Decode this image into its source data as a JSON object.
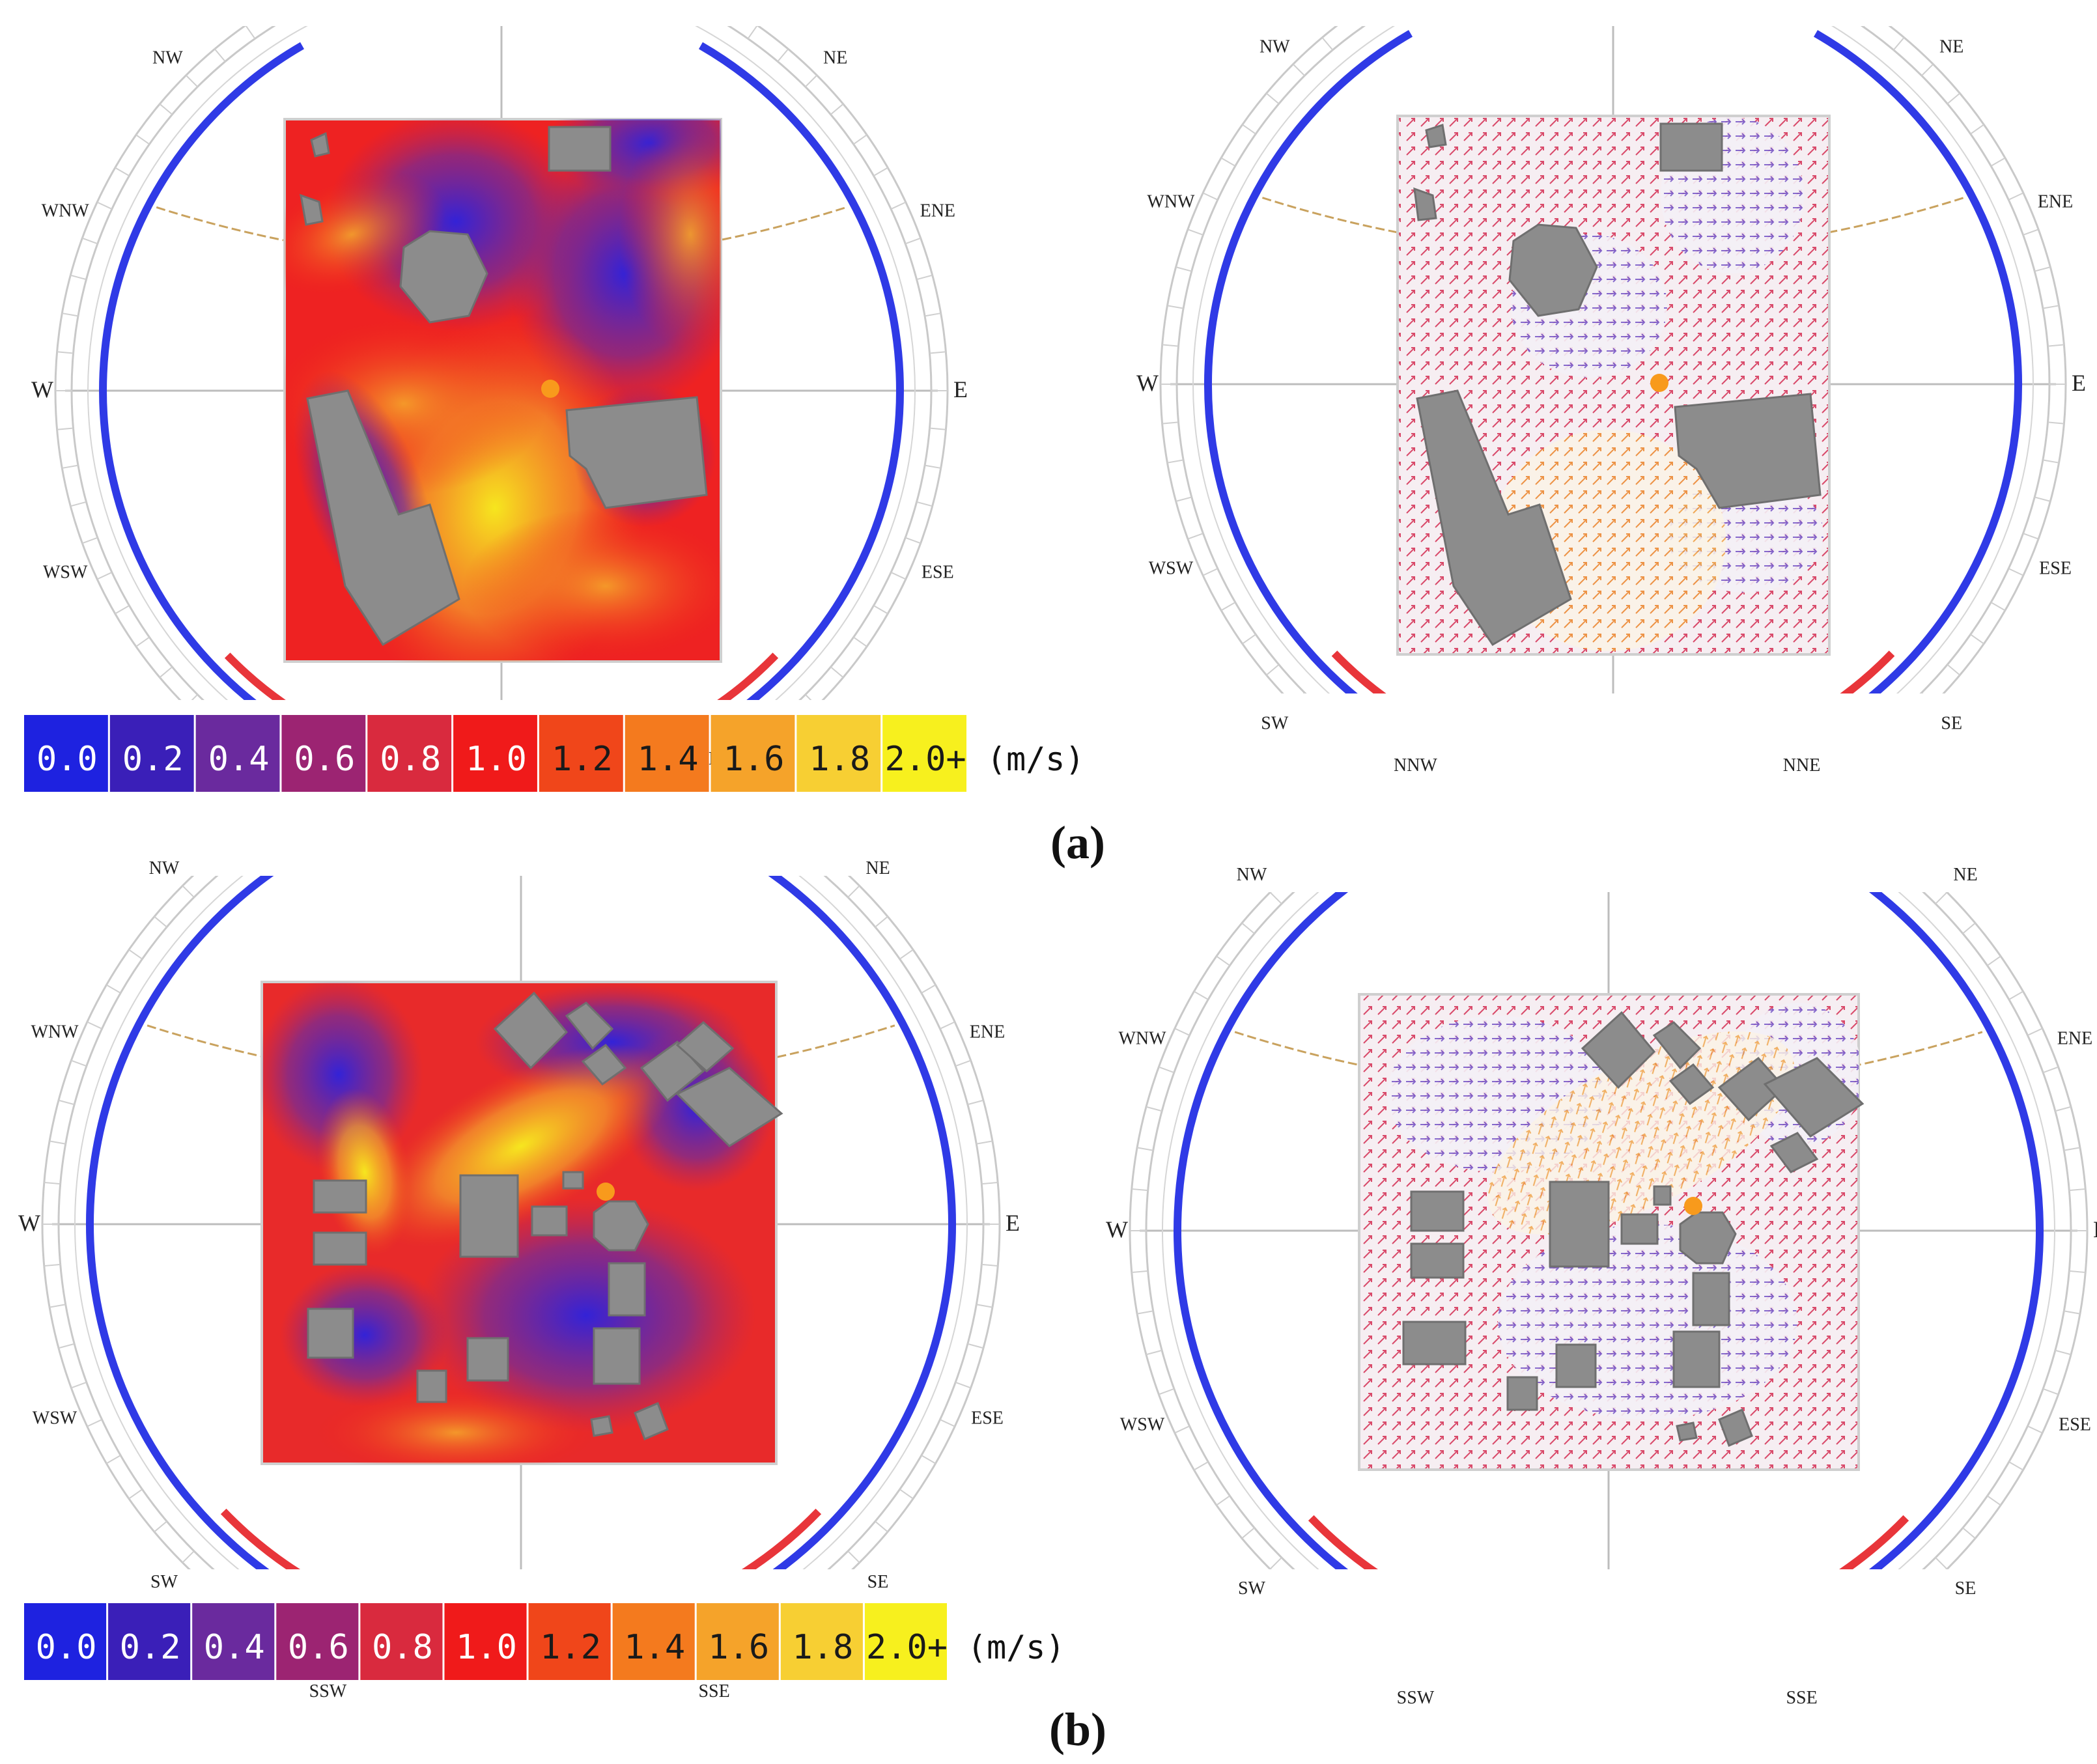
{
  "panels": [
    {
      "label": "(a)"
    },
    {
      "label": "(b)"
    }
  ],
  "compass_labels": {
    "a": [
      "NNW",
      "NNE",
      "NW",
      "NE",
      "WNW",
      "ENE",
      "W",
      "E",
      "WSW",
      "ESE",
      "SW",
      "SE"
    ],
    "b": [
      "NNW",
      "NNE",
      "NW",
      "NE",
      "WNW",
      "ENE",
      "W",
      "E",
      "WSW",
      "ESE",
      "SW",
      "SE",
      "SSW",
      "SSE"
    ]
  },
  "legend": {
    "values": [
      "0.0",
      "0.2",
      "0.4",
      "0.6",
      "0.8",
      "1.0",
      "1.2",
      "1.4",
      "1.6",
      "1.8",
      "2.0+"
    ],
    "colors": [
      "#1e22e0",
      "#3a1fb8",
      "#6a2a9e",
      "#9c2472",
      "#d92a3e",
      "#f01a1a",
      "#f0461a",
      "#f47a1e",
      "#f5a32a",
      "#f7cf33",
      "#f7f01e"
    ],
    "unit": "(m/s)"
  },
  "colors": {
    "building": "#8c8c8c",
    "sun_marker": "#f89a1c",
    "sun_path": "#c9a25e",
    "dial_blue": "#2f3ae6",
    "dial_red": "#e8353a"
  }
}
